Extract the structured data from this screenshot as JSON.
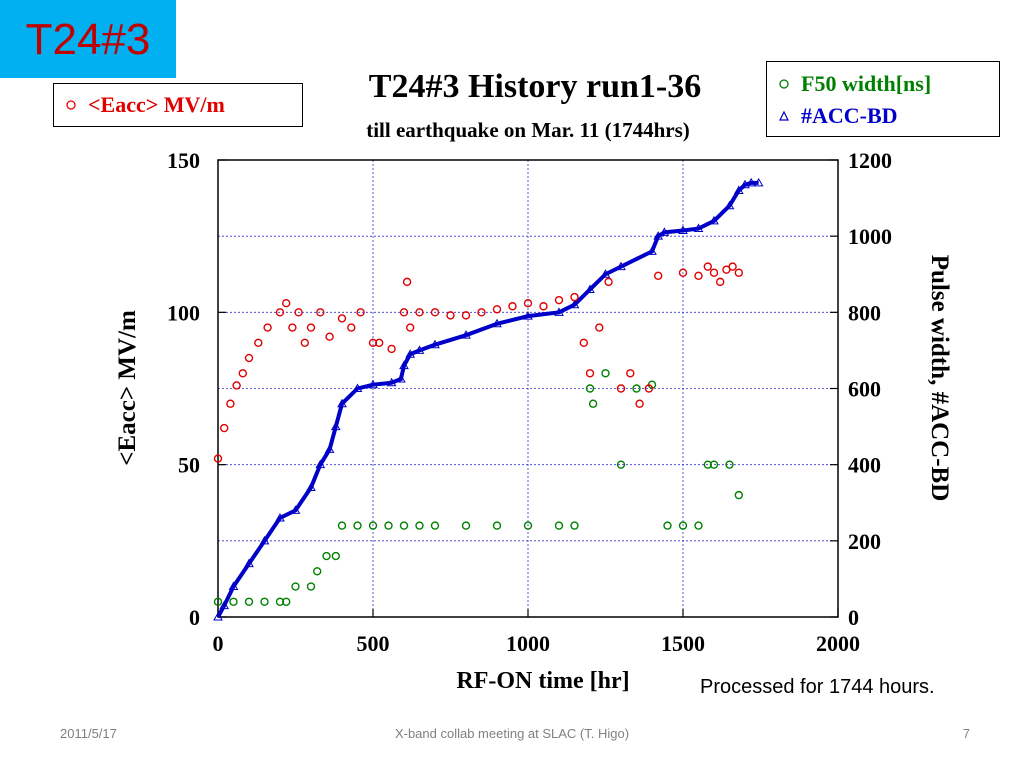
{
  "slide": {
    "tag": "T24#3",
    "note": "Processed for 1744 hours.",
    "footer": {
      "date": "2011/5/17",
      "center": "X-band collab meeting at SLAC (T. Higo)",
      "page": "7"
    }
  },
  "colors": {
    "tag_bg": "#00b0f0",
    "tag_text": "#c00000",
    "eacc": "#e00000",
    "f50": "#008000",
    "accbd": "#0000c8",
    "grid": "#3333cc"
  },
  "chart_data": {
    "type": "scatter",
    "title": "T24#3 History run1-36",
    "subtitle": "till earthquake on Mar. 11 (1744hrs)",
    "xlabel": "RF-ON time  [hr]",
    "ylabel_left": "<Eacc>  MV/m",
    "ylabel_right": "Pulse width, #ACC-BD",
    "xlim": [
      0,
      2000
    ],
    "ylim_left": [
      0,
      150
    ],
    "ylim_right": [
      0,
      1200
    ],
    "x_ticks": [
      "0",
      "500",
      "1000",
      "1500",
      "2000"
    ],
    "y_left_ticks": [
      "0",
      "50",
      "100",
      "150"
    ],
    "y_right_ticks": [
      "0",
      "200",
      "400",
      "600",
      "800",
      "1000",
      "1200"
    ],
    "grid": true,
    "legend": [
      {
        "name": "<Eacc>  MV/m",
        "marker": "circle",
        "axis": "left",
        "placement": "top-left"
      },
      {
        "name": "F50 width[ns]",
        "marker": "circle",
        "axis": "right",
        "placement": "top-right"
      },
      {
        "name": "#ACC-BD",
        "marker": "triangle",
        "axis": "right",
        "placement": "top-right"
      }
    ],
    "series": [
      {
        "name": "#ACC-BD",
        "axis": "right",
        "x": [
          0,
          20,
          50,
          100,
          150,
          200,
          250,
          300,
          330,
          360,
          380,
          400,
          450,
          500,
          560,
          590,
          600,
          620,
          650,
          700,
          800,
          900,
          1000,
          1100,
          1150,
          1200,
          1250,
          1300,
          1400,
          1420,
          1440,
          1500,
          1550,
          1600,
          1650,
          1680,
          1700,
          1720,
          1744
        ],
        "y": [
          0,
          30,
          80,
          140,
          200,
          260,
          280,
          340,
          400,
          440,
          500,
          560,
          600,
          610,
          615,
          625,
          660,
          690,
          700,
          715,
          740,
          770,
          790,
          800,
          820,
          860,
          900,
          920,
          960,
          1000,
          1010,
          1015,
          1020,
          1040,
          1080,
          1120,
          1135,
          1140,
          1140
        ]
      },
      {
        "name": "F50 width[ns]",
        "axis": "right",
        "x": [
          0,
          50,
          100,
          150,
          200,
          220,
          250,
          300,
          320,
          350,
          380,
          400,
          450,
          500,
          550,
          600,
          650,
          700,
          800,
          900,
          1000,
          1100,
          1150,
          1200,
          1210,
          1250,
          1300,
          1350,
          1400,
          1450,
          1500,
          1550,
          1580,
          1600,
          1650,
          1680
        ],
        "y": [
          40,
          40,
          40,
          40,
          40,
          40,
          80,
          80,
          120,
          160,
          160,
          240,
          240,
          240,
          240,
          240,
          240,
          240,
          240,
          240,
          240,
          240,
          240,
          600,
          560,
          640,
          400,
          600,
          610,
          240,
          240,
          240,
          400,
          400,
          400,
          320
        ]
      },
      {
        "name": "<Eacc>  MV/m",
        "axis": "left",
        "x": [
          0,
          20,
          40,
          60,
          80,
          100,
          130,
          160,
          200,
          220,
          240,
          260,
          280,
          300,
          330,
          360,
          400,
          430,
          460,
          500,
          520,
          560,
          600,
          610,
          620,
          650,
          700,
          750,
          800,
          850,
          900,
          950,
          1000,
          1050,
          1100,
          1150,
          1180,
          1200,
          1230,
          1260,
          1300,
          1330,
          1360,
          1390,
          1420,
          1500,
          1550,
          1580,
          1600,
          1620,
          1640,
          1660,
          1680
        ],
        "y": [
          52,
          62,
          70,
          76,
          80,
          85,
          90,
          95,
          100,
          103,
          95,
          100,
          90,
          95,
          100,
          92,
          98,
          95,
          100,
          90,
          90,
          88,
          100,
          110,
          95,
          100,
          100,
          99,
          99,
          100,
          101,
          102,
          103,
          102,
          104,
          105,
          90,
          80,
          95,
          110,
          75,
          80,
          70,
          75,
          112,
          113,
          112,
          115,
          113,
          110,
          114,
          115,
          113
        ]
      }
    ]
  }
}
